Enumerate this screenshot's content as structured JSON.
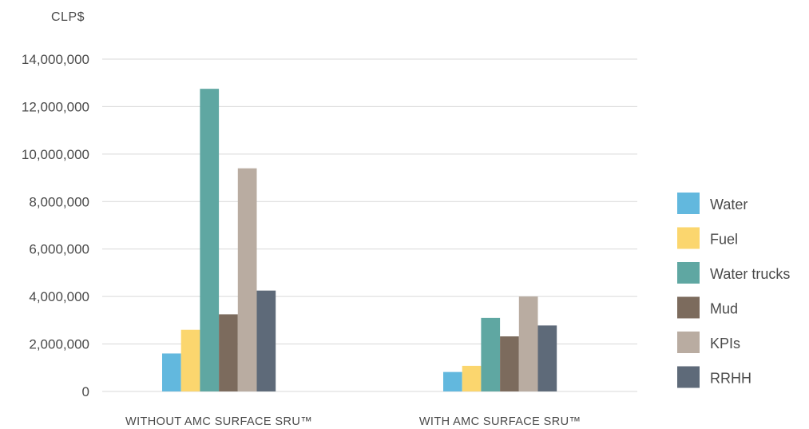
{
  "chart_data": {
    "type": "bar",
    "ylabel": "CLP$",
    "ylim": [
      0,
      14000000
    ],
    "yticks": [
      "0",
      "2,000,000",
      "4,000,000",
      "6,000,000",
      "8,000,000",
      "10,000,000",
      "12,000,000",
      "14,000,000"
    ],
    "grid": true,
    "legend_position": "right",
    "categories": [
      "WITHOUT AMC SURFACE SRU™",
      "WITH AMC SURFACE SRU™"
    ],
    "series": [
      {
        "name": "Water",
        "color": "#62b8de",
        "values": [
          1600000,
          820000
        ]
      },
      {
        "name": "Fuel",
        "color": "#fbd66e",
        "values": [
          2600000,
          1080000
        ]
      },
      {
        "name": "Water trucks",
        "color": "#5fa7a2",
        "values": [
          12750000,
          3100000
        ]
      },
      {
        "name": "Mud",
        "color": "#7c6b5d",
        "values": [
          3250000,
          2320000
        ]
      },
      {
        "name": "KPIs",
        "color": "#b9aca1",
        "values": [
          9400000,
          4000000
        ]
      },
      {
        "name": "RRHH",
        "color": "#5e6a79",
        "values": [
          4250000,
          2780000
        ]
      }
    ]
  }
}
